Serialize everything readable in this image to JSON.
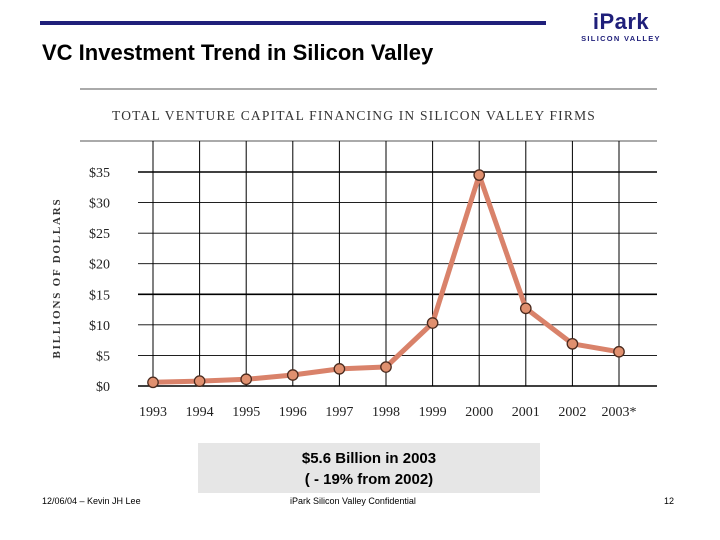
{
  "slide": {
    "title": "VC Investment Trend in Silicon Valley",
    "logo_main": "iPark",
    "logo_sub": "SILICON VALLEY"
  },
  "callout": {
    "line1": "$5.6 Billion in 2003",
    "line2": "( - 19% from 2002)"
  },
  "footer": {
    "left": "12/06/04 – Kevin JH Lee",
    "center": "iPark Silicon Valley Confidential",
    "page": "12"
  },
  "colors": {
    "brand": "#1f1f7a",
    "line": "#d9826a",
    "marker_fill": "#e0906f",
    "marker_stroke": "#4a2a1e"
  },
  "chart_data": {
    "type": "line",
    "title": "TOTAL VENTURE CAPITAL FINANCING IN SILICON VALLEY FIRMS",
    "ylabel": "BILLIONS OF DOLLARS",
    "xlabel": "",
    "categories": [
      "1993",
      "1994",
      "1995",
      "1996",
      "1997",
      "1998",
      "1999",
      "2000",
      "2001",
      "2002",
      "2003*"
    ],
    "values": [
      0.6,
      0.8,
      1.1,
      1.8,
      2.8,
      3.1,
      10.3,
      34.5,
      12.7,
      6.9,
      5.6
    ],
    "ylim": [
      0,
      35
    ],
    "yticks": [
      0,
      5,
      10,
      15,
      20,
      25,
      30,
      35
    ],
    "ytick_labels": [
      "$0",
      "$5",
      "$10",
      "$15",
      "$20",
      "$25",
      "$30",
      "$35"
    ],
    "grid": true,
    "legend": "none"
  }
}
